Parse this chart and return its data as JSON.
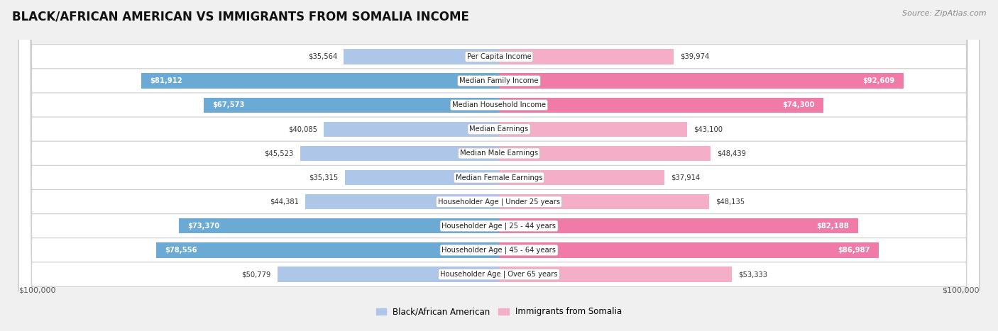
{
  "title": "BLACK/AFRICAN AMERICAN VS IMMIGRANTS FROM SOMALIA INCOME",
  "source": "Source: ZipAtlas.com",
  "categories": [
    "Per Capita Income",
    "Median Family Income",
    "Median Household Income",
    "Median Earnings",
    "Median Male Earnings",
    "Median Female Earnings",
    "Householder Age | Under 25 years",
    "Householder Age | 25 - 44 years",
    "Householder Age | 45 - 64 years",
    "Householder Age | Over 65 years"
  ],
  "black_values": [
    35564,
    81912,
    67573,
    40085,
    45523,
    35315,
    44381,
    73370,
    78556,
    50779
  ],
  "somalia_values": [
    39974,
    92609,
    74300,
    43100,
    48439,
    37914,
    48135,
    82188,
    86987,
    53333
  ],
  "black_labels": [
    "$35,564",
    "$81,912",
    "$67,573",
    "$40,085",
    "$45,523",
    "$35,315",
    "$44,381",
    "$73,370",
    "$78,556",
    "$50,779"
  ],
  "somalia_labels": [
    "$39,974",
    "$92,609",
    "$74,300",
    "$43,100",
    "$48,439",
    "$37,914",
    "$48,135",
    "$82,188",
    "$86,987",
    "$53,333"
  ],
  "max_value": 100000,
  "black_color_light": "#aec6e8",
  "black_color_dark": "#6aaad4",
  "somalia_color_light": "#f5aec8",
  "somalia_color_dark": "#f07aa8",
  "row_bg_odd": "#f0f0f0",
  "row_bg_even": "#e8e8e8",
  "row_outline": "#d0d0d0",
  "background_color": "#f0f0f0",
  "bar_height": 0.62,
  "figsize": [
    14.06,
    4.67
  ],
  "dpi": 100,
  "dark_threshold": 60000
}
